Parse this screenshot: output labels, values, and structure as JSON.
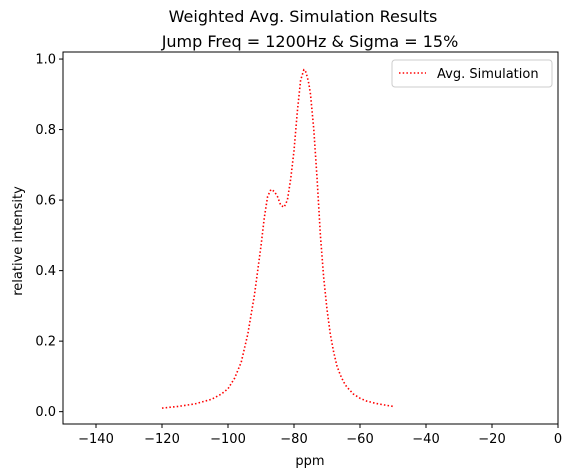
{
  "chart_data": {
    "type": "line",
    "title": "Weighted Avg. Simulation Results",
    "subtitle": "Jump Freq = 1200Hz & Sigma = 15%",
    "xlabel": "ppm",
    "ylabel": "relative intensity",
    "xlim": [
      -150,
      0
    ],
    "ylim": [
      -0.035,
      1.02
    ],
    "x_ticks": [
      -140,
      -120,
      -100,
      -80,
      -60,
      -40,
      -20,
      0
    ],
    "y_ticks": [
      0.0,
      0.2,
      0.4,
      0.6,
      0.8,
      1.0
    ],
    "y_tick_labels": [
      "0.0",
      "0.2",
      "0.4",
      "0.6",
      "0.8",
      "1.0"
    ],
    "grid": false,
    "legend_position": "top-right",
    "series": [
      {
        "name": "Avg. Simulation",
        "color": "#ff0000",
        "line_style": "dotted",
        "x": [
          -120,
          -115,
          -110,
          -105,
          -102,
          -100,
          -98,
          -96,
          -94,
          -92,
          -90,
          -89,
          -88,
          -87,
          -86,
          -85,
          -84,
          -83,
          -82,
          -81,
          -80,
          -79,
          -78,
          -77,
          -76.5,
          -76,
          -75.5,
          -75,
          -74,
          -73,
          -72,
          -71,
          -70,
          -69,
          -68,
          -67,
          -66,
          -65,
          -64,
          -62,
          -60,
          -58,
          -55,
          -52,
          -50
        ],
        "y": [
          0.01,
          0.015,
          0.022,
          0.035,
          0.05,
          0.065,
          0.095,
          0.14,
          0.22,
          0.33,
          0.47,
          0.55,
          0.61,
          0.63,
          0.625,
          0.61,
          0.585,
          0.58,
          0.6,
          0.66,
          0.74,
          0.85,
          0.94,
          0.97,
          0.965,
          0.95,
          0.93,
          0.9,
          0.8,
          0.66,
          0.5,
          0.38,
          0.29,
          0.22,
          0.17,
          0.13,
          0.105,
          0.085,
          0.07,
          0.05,
          0.038,
          0.03,
          0.023,
          0.018,
          0.015
        ]
      }
    ]
  }
}
